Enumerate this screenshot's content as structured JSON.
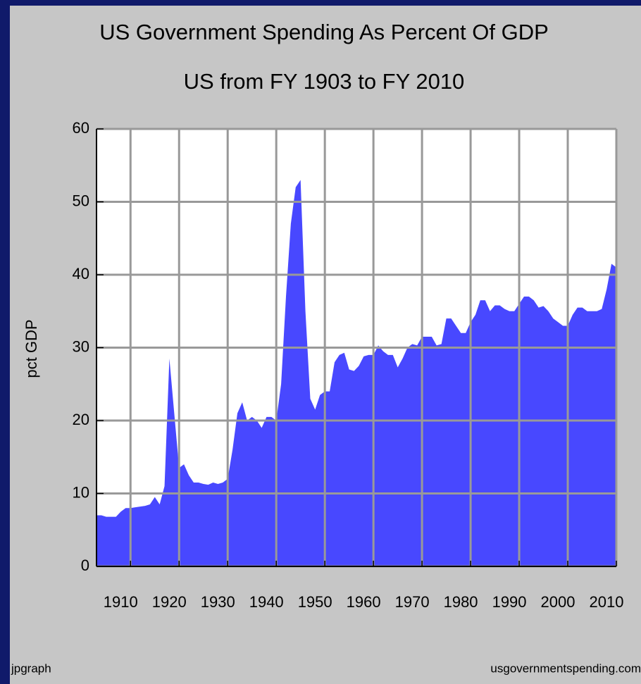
{
  "chart_data": {
    "type": "area",
    "title": "US Government Spending As Percent Of GDP",
    "subtitle": "US from FY 1903 to FY 2010",
    "y_label": "pct GDP",
    "credit_left": "jpgraph",
    "credit_right": "usgovernmentspending.com",
    "color": "#4848ff",
    "grid": true,
    "x": [
      1903,
      1904,
      1905,
      1906,
      1907,
      1908,
      1909,
      1910,
      1911,
      1912,
      1913,
      1914,
      1915,
      1916,
      1917,
      1918,
      1919,
      1920,
      1921,
      1922,
      1923,
      1924,
      1925,
      1926,
      1927,
      1928,
      1929,
      1930,
      1931,
      1932,
      1933,
      1934,
      1935,
      1936,
      1937,
      1938,
      1939,
      1940,
      1941,
      1942,
      1943,
      1944,
      1945,
      1946,
      1947,
      1948,
      1949,
      1950,
      1951,
      1952,
      1953,
      1954,
      1955,
      1956,
      1957,
      1958,
      1959,
      1960,
      1961,
      1962,
      1963,
      1964,
      1965,
      1966,
      1967,
      1968,
      1969,
      1970,
      1971,
      1972,
      1973,
      1974,
      1975,
      1976,
      1977,
      1978,
      1979,
      1980,
      1981,
      1982,
      1983,
      1984,
      1985,
      1986,
      1987,
      1988,
      1989,
      1990,
      1991,
      1992,
      1993,
      1994,
      1995,
      1996,
      1997,
      1998,
      1999,
      2000,
      2001,
      2002,
      2003,
      2004,
      2005,
      2006,
      2007,
      2008,
      2009,
      2010
    ],
    "values": [
      7,
      7,
      6.8,
      6.8,
      6.8,
      7.5,
      8,
      8,
      8.1,
      8.2,
      8.3,
      8.5,
      9.5,
      8.5,
      11,
      28.5,
      21,
      13.5,
      14,
      12.5,
      11.5,
      11.5,
      11.3,
      11.2,
      11.5,
      11.3,
      11.5,
      12,
      16,
      21,
      22.5,
      20,
      20.5,
      20,
      19,
      20.5,
      20.5,
      20,
      25,
      37,
      47,
      52,
      53,
      35,
      23,
      21.5,
      23.5,
      24,
      24,
      28,
      29,
      29.3,
      27,
      26.8,
      27.5,
      28.8,
      29,
      29,
      30.3,
      29.5,
      29,
      29,
      27.3,
      28.5,
      30,
      30.5,
      30.3,
      31.5,
      31.5,
      31.5,
      30.3,
      30.5,
      34,
      34,
      33,
      32,
      32,
      33.5,
      34.5,
      36.5,
      36.5,
      35,
      35.8,
      35.8,
      35.3,
      35,
      35,
      36,
      37,
      37,
      36.5,
      35.5,
      35.7,
      35,
      34,
      33.5,
      33,
      33,
      34.5,
      35.5,
      35.5,
      35,
      35,
      35,
      35.3,
      38,
      41.5,
      41
    ],
    "xlim": [
      1903,
      2010
    ],
    "ylim": [
      0,
      60
    ],
    "xticks": [
      1910,
      1920,
      1930,
      1940,
      1950,
      1960,
      1970,
      1980,
      1990,
      2000,
      2010
    ],
    "yticks": [
      0,
      10,
      20,
      30,
      40,
      50,
      60
    ]
  }
}
